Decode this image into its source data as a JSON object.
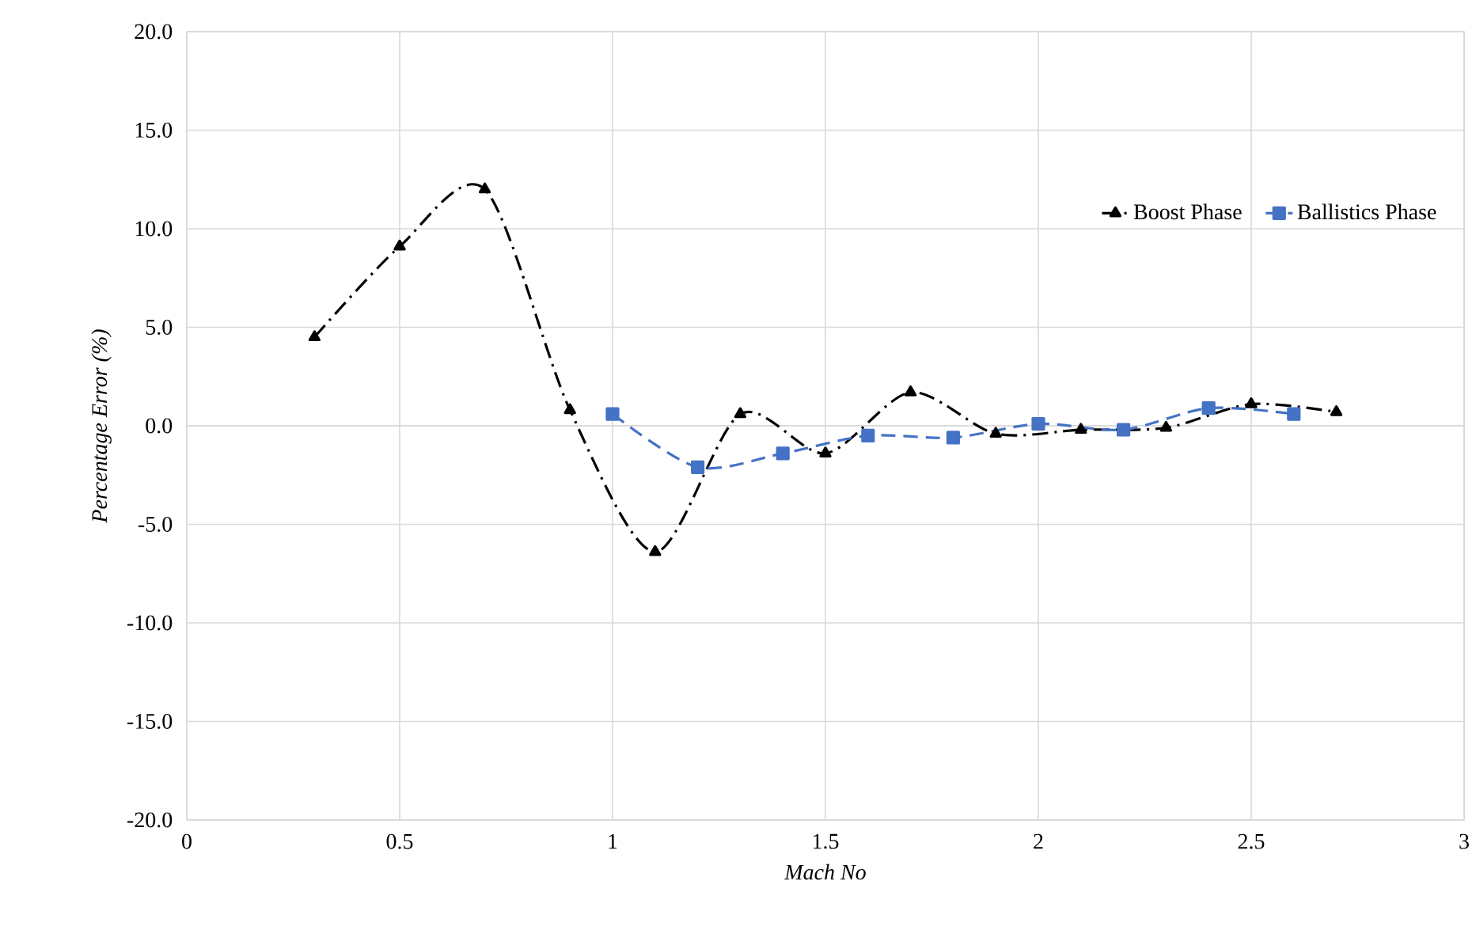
{
  "chart_data": {
    "type": "line",
    "xlabel": "Mach No",
    "ylabel": "Percentage Error (%)",
    "xlim": [
      0,
      3
    ],
    "xticks": [
      0,
      0.5,
      1,
      1.5,
      2,
      2.5,
      3
    ],
    "ylim": [
      -20,
      20
    ],
    "yticks": [
      {
        "value": -20,
        "label": "-20.0"
      },
      {
        "value": -15,
        "label": "-15.0"
      },
      {
        "value": -10,
        "label": "-10.0"
      },
      {
        "value": -5,
        "label": "-5.0"
      },
      {
        "value": 0,
        "label": "0.0"
      },
      {
        "value": 5,
        "label": "5.0"
      },
      {
        "value": 10,
        "label": "10.0"
      },
      {
        "value": 15,
        "label": "15.0"
      },
      {
        "value": 20,
        "label": "20.0"
      }
    ],
    "grid": true,
    "legend": "top right",
    "series": [
      {
        "name": "Boost Phase",
        "color": "#000000",
        "marker": "triangle",
        "line_style": "dashdot",
        "x": [
          0.3,
          0.5,
          0.7,
          0.9,
          1.1,
          1.3,
          1.5,
          1.7,
          1.9,
          2.1,
          2.3,
          2.5,
          2.7
        ],
        "values": [
          4.5,
          9.1,
          12.0,
          0.8,
          -6.4,
          0.6,
          -1.4,
          1.7,
          -0.4,
          -0.2,
          -0.1,
          1.1,
          0.7
        ]
      },
      {
        "name": "Ballistics Phase",
        "color": "#4472c4",
        "marker": "square",
        "line_style": "dashed",
        "x": [
          1.0,
          1.2,
          1.4,
          1.6,
          1.8,
          2.0,
          2.2,
          2.4,
          2.6
        ],
        "values": [
          0.6,
          -2.1,
          -1.4,
          -0.5,
          -0.6,
          0.1,
          -0.2,
          0.9,
          0.6
        ]
      }
    ]
  }
}
